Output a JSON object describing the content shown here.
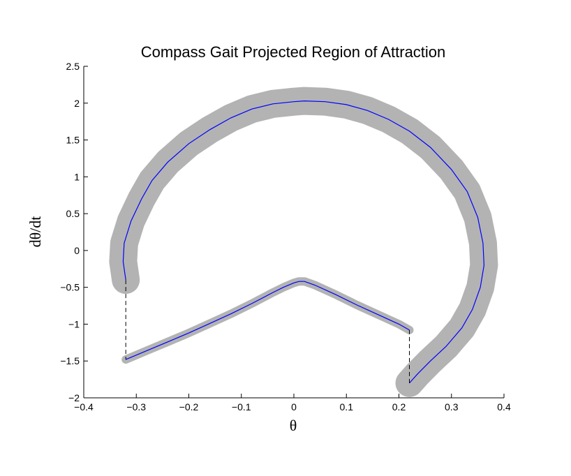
{
  "chart_data": {
    "type": "line",
    "title": "Compass Gait Projected Region of Attraction",
    "xlabel": "θ",
    "ylabel": "dθ/dt",
    "xlim": [
      -0.4,
      0.4
    ],
    "ylim": [
      -2,
      2.5
    ],
    "xticks": [
      -0.4,
      -0.3,
      -0.2,
      -0.1,
      0,
      0.1,
      0.2,
      0.3,
      0.4
    ],
    "yticks": [
      -2,
      -1.5,
      -1,
      -0.5,
      0,
      0.5,
      1,
      1.5,
      2,
      2.5
    ],
    "xtick_labels": [
      "−0.4",
      "−0.3",
      "−0.2",
      "−0.1",
      "0",
      "0.1",
      "0.2",
      "0.3",
      "0.4"
    ],
    "ytick_labels": [
      "−2",
      "−1.5",
      "−1",
      "−0.5",
      "0",
      "0.5",
      "1",
      "1.5",
      "2",
      "2.5"
    ],
    "grid": false,
    "colors": {
      "region": "#b3b3b3",
      "limit_cycle": "#0000ff",
      "impact": "#000000"
    },
    "series": [
      {
        "x": [
          -0.32,
          -0.325,
          -0.323,
          -0.31,
          -0.29,
          -0.27,
          -0.24,
          -0.2,
          -0.16,
          -0.12,
          -0.08,
          -0.04,
          0.0,
          0.02,
          0.06,
          0.1,
          0.14,
          0.18,
          0.22,
          0.26,
          0.3,
          0.33,
          0.35,
          0.36,
          0.362,
          0.355,
          0.34,
          0.32,
          0.29,
          0.26,
          0.235,
          0.22
        ],
        "y": [
          -0.4,
          -0.15,
          0.1,
          0.4,
          0.7,
          0.95,
          1.2,
          1.45,
          1.64,
          1.8,
          1.92,
          1.99,
          2.02,
          2.03,
          2.02,
          1.98,
          1.9,
          1.78,
          1.62,
          1.4,
          1.1,
          0.8,
          0.45,
          0.1,
          -0.2,
          -0.5,
          -0.8,
          -1.05,
          -1.3,
          -1.5,
          -1.68,
          -1.8
        ]
      },
      {
        "x": [
          -0.32,
          -0.28,
          -0.24,
          -0.2,
          -0.16,
          -0.12,
          -0.08,
          -0.04,
          -0.02,
          0.0,
          0.01,
          0.02,
          0.04,
          0.08,
          0.12,
          0.16,
          0.2,
          0.22
        ],
        "y": [
          -1.48,
          -1.36,
          -1.24,
          -1.12,
          -0.99,
          -0.86,
          -0.72,
          -0.57,
          -0.5,
          -0.44,
          -0.42,
          -0.42,
          -0.47,
          -0.6,
          -0.74,
          -0.87,
          -1.0,
          -1.08
        ]
      },
      {
        "x": [
          -0.32,
          -0.32
        ],
        "y": [
          -0.4,
          -1.48
        ]
      },
      {
        "x": [
          0.22,
          0.22
        ],
        "y": [
          -1.08,
          -1.8
        ]
      }
    ]
  }
}
